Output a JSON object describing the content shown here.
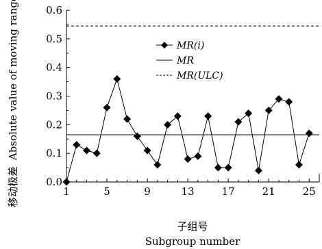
{
  "chart_data": {
    "type": "line",
    "xlabel_cn": "子组号",
    "xlabel_en": "Subgroup number",
    "ylabel_cn": "移动极差",
    "ylabel_en": "Absolute value of moving range",
    "xlim": [
      1,
      26
    ],
    "ylim": [
      0,
      0.6
    ],
    "x_ticks": [
      1,
      5,
      9,
      13,
      17,
      21,
      25
    ],
    "y_ticks": [
      0.0,
      0.1,
      0.2,
      0.3,
      0.4,
      0.5,
      0.6
    ],
    "y_tick_labels": [
      "0.0",
      "0.1",
      "0.2",
      "0.3",
      "0.4",
      "0.5",
      "0.6"
    ],
    "grid": false,
    "legend_position": "top-center",
    "series": [
      {
        "name": "MR(i)",
        "style": "solid-diamond",
        "x": [
          1,
          2,
          3,
          4,
          5,
          6,
          7,
          8,
          9,
          10,
          11,
          12,
          13,
          14,
          15,
          16,
          17,
          18,
          19,
          20,
          21,
          22,
          23,
          24,
          25
        ],
        "values": [
          0.0,
          0.13,
          0.11,
          0.1,
          0.26,
          0.36,
          0.22,
          0.16,
          0.11,
          0.06,
          0.2,
          0.23,
          0.08,
          0.09,
          0.23,
          0.05,
          0.05,
          0.21,
          0.24,
          0.04,
          0.25,
          0.29,
          0.28,
          0.06,
          0.17
        ]
      },
      {
        "name": "MR",
        "style": "solid-line",
        "value": 0.165
      },
      {
        "name": "MR(ULC)",
        "style": "dashed-line",
        "value": 0.545
      }
    ]
  }
}
